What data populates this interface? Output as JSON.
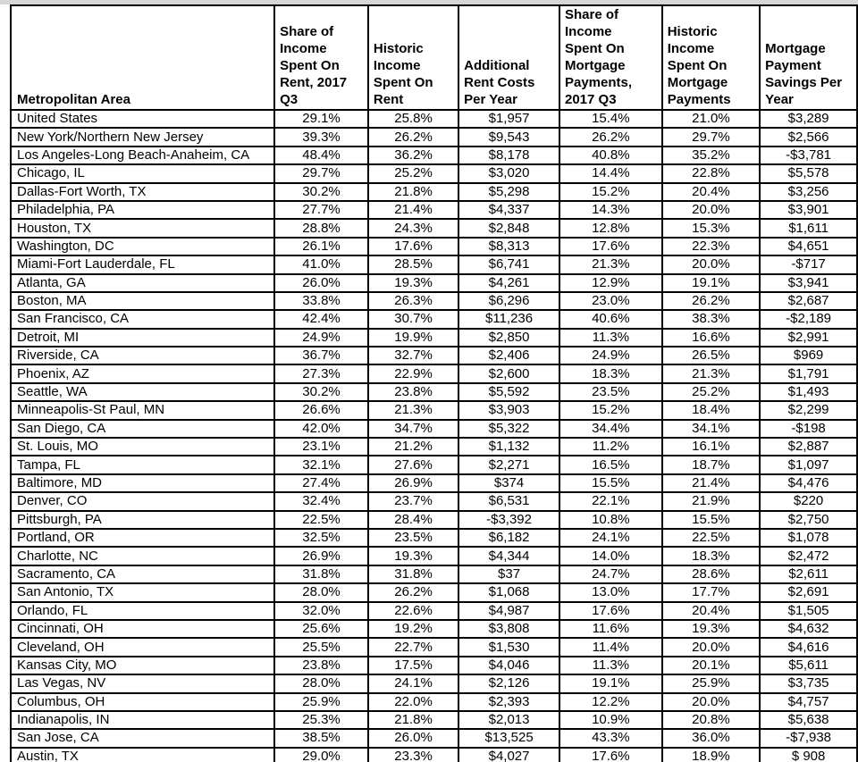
{
  "page": {
    "background_color": "#ffffff",
    "top_edge_strip_color": "#d7d7d7",
    "table_border_color": "#000000",
    "text_color": "#000000"
  },
  "chart_data": {
    "type": "table",
    "columns": [
      "Metropolitan Area",
      "Share of Income Spent On Rent, 2017 Q3",
      "Historic Income Spent On Rent",
      "Additional Rent Costs Per Year",
      "Share of Income Spent On Mortgage Payments, 2017 Q3",
      "Historic Income Spent On Mortgage Payments",
      "Mortgage Payment Savings Per Year"
    ],
    "rows": [
      [
        "United States",
        "29.1%",
        "25.8%",
        "$1,957",
        "15.4%",
        "21.0%",
        "$3,289"
      ],
      [
        "New York/Northern New Jersey",
        "39.3%",
        "26.2%",
        "$9,543",
        "26.2%",
        "29.7%",
        "$2,566"
      ],
      [
        "Los Angeles-Long Beach-Anaheim, CA",
        "48.4%",
        "36.2%",
        "$8,178",
        "40.8%",
        "35.2%",
        "-$3,781"
      ],
      [
        "Chicago, IL",
        "29.7%",
        "25.2%",
        "$3,020",
        "14.4%",
        "22.8%",
        "$5,578"
      ],
      [
        "Dallas-Fort Worth, TX",
        "30.2%",
        "21.8%",
        "$5,298",
        "15.2%",
        "20.4%",
        "$3,256"
      ],
      [
        "Philadelphia, PA",
        "27.7%",
        "21.4%",
        "$4,337",
        "14.3%",
        "20.0%",
        "$3,901"
      ],
      [
        "Houston, TX",
        "28.8%",
        "24.3%",
        "$2,848",
        "12.8%",
        "15.3%",
        "$1,611"
      ],
      [
        "Washington, DC",
        "26.1%",
        "17.6%",
        "$8,313",
        "17.6%",
        "22.3%",
        "$4,651"
      ],
      [
        "Miami-Fort Lauderdale, FL",
        "41.0%",
        "28.5%",
        "$6,741",
        "21.3%",
        "20.0%",
        "-$717"
      ],
      [
        "Atlanta, GA",
        "26.0%",
        "19.3%",
        "$4,261",
        "12.9%",
        "19.1%",
        "$3,941"
      ],
      [
        "Boston, MA",
        "33.8%",
        "26.3%",
        "$6,296",
        "23.0%",
        "26.2%",
        "$2,687"
      ],
      [
        "San Francisco, CA",
        "42.4%",
        "30.7%",
        "$11,236",
        "40.6%",
        "38.3%",
        "-$2,189"
      ],
      [
        "Detroit, MI",
        "24.9%",
        "19.9%",
        "$2,850",
        "11.3%",
        "16.6%",
        "$2,991"
      ],
      [
        "Riverside, CA",
        "36.7%",
        "32.7%",
        "$2,406",
        "24.9%",
        "26.5%",
        "$969"
      ],
      [
        "Phoenix, AZ",
        "27.3%",
        "22.9%",
        "$2,600",
        "18.3%",
        "21.3%",
        "$1,791"
      ],
      [
        "Seattle, WA",
        "30.2%",
        "23.8%",
        "$5,592",
        "23.5%",
        "25.2%",
        "$1,493"
      ],
      [
        "Minneapolis-St Paul, MN",
        "26.6%",
        "21.3%",
        "$3,903",
        "15.2%",
        "18.4%",
        "$2,299"
      ],
      [
        "San Diego, CA",
        "42.0%",
        "34.7%",
        "$5,322",
        "34.4%",
        "34.1%",
        "-$198"
      ],
      [
        "St. Louis, MO",
        "23.1%",
        "21.2%",
        "$1,132",
        "11.2%",
        "16.1%",
        "$2,887"
      ],
      [
        "Tampa, FL",
        "32.1%",
        "27.6%",
        "$2,271",
        "16.5%",
        "18.7%",
        "$1,097"
      ],
      [
        "Baltimore, MD",
        "27.4%",
        "26.9%",
        "$374",
        "15.5%",
        "21.4%",
        "$4,476"
      ],
      [
        "Denver, CO",
        "32.4%",
        "23.7%",
        "$6,531",
        "22.1%",
        "21.9%",
        "$220"
      ],
      [
        "Pittsburgh, PA",
        "22.5%",
        "28.4%",
        "-$3,392",
        "10.8%",
        "15.5%",
        "$2,750"
      ],
      [
        "Portland, OR",
        "32.5%",
        "23.5%",
        "$6,182",
        "24.1%",
        "22.5%",
        "$1,078"
      ],
      [
        "Charlotte, NC",
        "26.9%",
        "19.3%",
        "$4,344",
        "14.0%",
        "18.3%",
        "$2,472"
      ],
      [
        "Sacramento, CA",
        "31.8%",
        "31.8%",
        "$37",
        "24.7%",
        "28.6%",
        "$2,611"
      ],
      [
        "San Antonio, TX",
        "28.0%",
        "26.2%",
        "$1,068",
        "13.0%",
        "17.7%",
        "$2,691"
      ],
      [
        "Orlando, FL",
        "32.0%",
        "22.6%",
        "$4,987",
        "17.6%",
        "20.4%",
        "$1,505"
      ],
      [
        "Cincinnati, OH",
        "25.6%",
        "19.2%",
        "$3,808",
        "11.6%",
        "19.3%",
        "$4,632"
      ],
      [
        "Cleveland, OH",
        "25.5%",
        "22.7%",
        "$1,530",
        "11.4%",
        "20.0%",
        "$4,616"
      ],
      [
        "Kansas City, MO",
        "23.8%",
        "17.5%",
        "$4,046",
        "11.3%",
        "20.1%",
        "$5,611"
      ],
      [
        "Las Vegas, NV",
        "28.0%",
        "24.1%",
        "$2,126",
        "19.1%",
        "25.9%",
        "$3,735"
      ],
      [
        "Columbus, OH",
        "25.9%",
        "22.0%",
        "$2,393",
        "12.2%",
        "20.0%",
        "$4,757"
      ],
      [
        "Indianapolis, IN",
        "25.3%",
        "21.8%",
        "$2,013",
        "10.9%",
        "20.8%",
        "$5,638"
      ],
      [
        "San Jose, CA",
        "38.5%",
        "26.0%",
        "$13,525",
        "43.3%",
        "36.0%",
        "-$7,938"
      ],
      [
        "Austin, TX",
        "29.0%",
        "23.3%",
        "$4,027",
        "17.6%",
        "18.9%",
        "$ 908"
      ]
    ]
  }
}
